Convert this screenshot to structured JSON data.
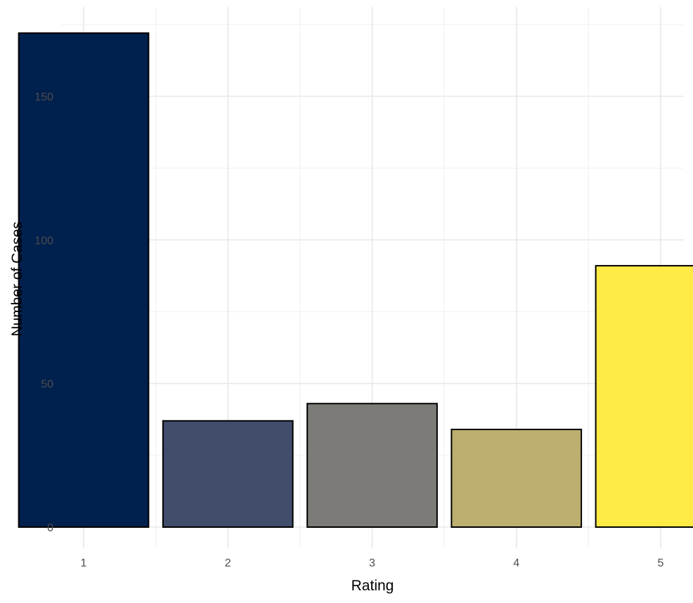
{
  "chart_data": {
    "type": "bar",
    "title": "",
    "xlabel": "Rating",
    "ylabel": "Number of Cases",
    "categories": [
      "1",
      "2",
      "3",
      "4",
      "5"
    ],
    "values": [
      172,
      37,
      43,
      34,
      91
    ],
    "colors": [
      "#00204d",
      "#414d6b",
      "#7c7b78",
      "#bcaf6f",
      "#ffea46"
    ],
    "ylim": [
      0,
      176
    ],
    "yticks": [
      0,
      50,
      100,
      150
    ],
    "ytick_labels": [
      "0",
      "50",
      "100",
      "150"
    ],
    "grid": true,
    "legend": "none"
  }
}
